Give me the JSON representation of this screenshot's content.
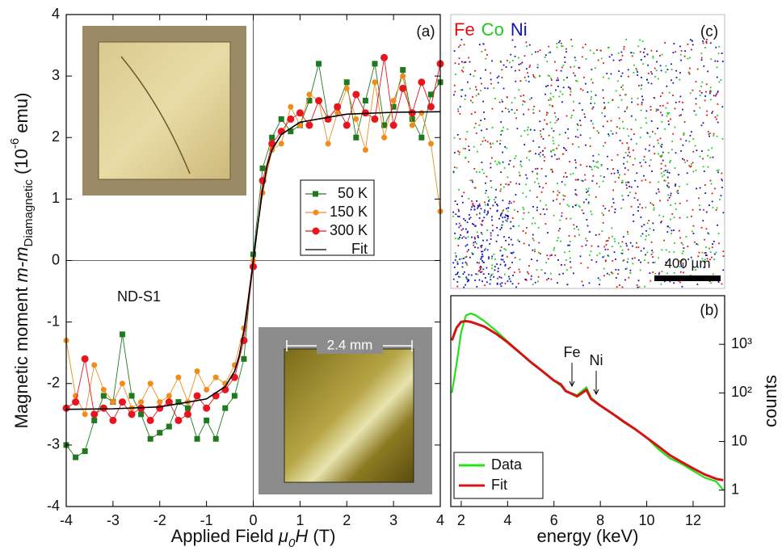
{
  "chart_data": [
    {
      "type": "line",
      "label": "(a)",
      "x_label": [
        "Applied Field ",
        "μ",
        "0",
        "H",
        " (T)"
      ],
      "y_label": [
        "Magnetic moment ",
        "m-m",
        "Diamagnetic",
        " (10",
        "-6",
        " emu)"
      ],
      "annotations": [
        "ND-S1",
        "2.4 mm"
      ],
      "xlim": [
        -4,
        4
      ],
      "ylim": [
        -4,
        4
      ],
      "xticks": [
        -4,
        -3,
        -2,
        -1,
        0,
        1,
        2,
        3,
        4
      ],
      "yticks": [
        -4,
        -3,
        -2,
        -1,
        0,
        1,
        2,
        3,
        4
      ],
      "x": [
        -4,
        -3.8,
        -3.6,
        -3.4,
        -3.2,
        -3,
        -2.8,
        -2.6,
        -2.4,
        -2.2,
        -2,
        -1.8,
        -1.6,
        -1.4,
        -1.2,
        -1,
        -0.8,
        -0.6,
        -0.4,
        -0.2,
        0,
        0.2,
        0.4,
        0.6,
        0.8,
        1,
        1.2,
        1.4,
        1.6,
        1.8,
        2,
        2.2,
        2.4,
        2.6,
        2.8,
        3,
        3.2,
        3.4,
        3.6,
        3.8,
        4
      ],
      "series": [
        {
          "name": "50 K",
          "color": "#1f7a1f",
          "marker": "square",
          "values": [
            -3.0,
            -3.2,
            -3.1,
            -2.6,
            -2.2,
            -2.3,
            -1.2,
            -2.2,
            -2.5,
            -2.9,
            -2.8,
            -2.7,
            -2.3,
            -2.4,
            -2.9,
            -2.6,
            -2.9,
            -2.4,
            -2.2,
            -1.6,
            0.1,
            1.5,
            2.0,
            2.3,
            2.1,
            2.2,
            2.6,
            3.2,
            2.3,
            2.5,
            2.9,
            2.0,
            2.6,
            3.2,
            2.2,
            2.5,
            3.1,
            2.3,
            2.0,
            2.7,
            2.9
          ]
        },
        {
          "name": "150 K",
          "color": "#f08c1a",
          "marker": "circle",
          "values": [
            -1.3,
            -2.2,
            -2.5,
            -1.7,
            -2.1,
            -2.3,
            -2.0,
            -2.4,
            -2.3,
            -2.0,
            -2.3,
            -2.2,
            -1.9,
            -2.3,
            -1.8,
            -2.1,
            -1.9,
            -2.0,
            -1.7,
            -1.1,
            0.0,
            1.1,
            1.8,
            1.9,
            2.5,
            2.2,
            2.7,
            2.6,
            1.9,
            2.4,
            2.8,
            2.3,
            1.8,
            2.9,
            2.0,
            2.6,
            3.0,
            2.2,
            2.4,
            1.9,
            0.8
          ]
        },
        {
          "name": "300 K",
          "color": "#e8141e",
          "marker": "bigcircle",
          "values": [
            -2.4,
            -2.3,
            -1.6,
            -2.5,
            -2.4,
            -2.6,
            -2.3,
            -2.5,
            -2.4,
            -2.6,
            -2.4,
            -2.3,
            -2.6,
            -2.5,
            -2.2,
            -2.4,
            -2.2,
            -2.1,
            -1.9,
            -1.3,
            -0.1,
            1.3,
            1.9,
            2.1,
            2.3,
            2.4,
            2.2,
            2.6,
            2.3,
            2.5,
            2.2,
            2.7,
            2.4,
            2.3,
            3.3,
            2.2,
            2.8,
            2.4,
            2.9,
            2.5,
            3.2
          ]
        },
        {
          "name": "Fit",
          "color": "#000000",
          "marker": "none",
          "x": [
            -4,
            -3,
            -2,
            -1,
            -0.6,
            -0.4,
            -0.3,
            -0.2,
            -0.1,
            0,
            0.1,
            0.2,
            0.3,
            0.4,
            0.6,
            1,
            2,
            3,
            4
          ],
          "values": [
            -2.42,
            -2.41,
            -2.38,
            -2.25,
            -2.05,
            -1.8,
            -1.55,
            -1.15,
            -0.6,
            0,
            0.6,
            1.15,
            1.55,
            1.8,
            2.05,
            2.25,
            2.38,
            2.41,
            2.42
          ]
        }
      ]
    },
    {
      "type": "line",
      "label": "(b)",
      "log_y": true,
      "x_label": "energy (keV)",
      "y_label": "counts",
      "annotations": [
        "Fe",
        "Ni"
      ],
      "xlim": [
        1.55,
        13.36
      ],
      "ylim": [
        0.46,
        10000
      ],
      "xticks": [
        2,
        4,
        6,
        8,
        10,
        12
      ],
      "yticks": [
        1,
        10,
        {
          "value": 100,
          "label": "10²"
        },
        {
          "value": 1000,
          "label": "10³"
        }
      ],
      "x": [
        1.6,
        1.8,
        2.0,
        2.2,
        2.4,
        2.6,
        3,
        3.5,
        4,
        4.5,
        5,
        5.5,
        6,
        6.3,
        6.5,
        7,
        7.4,
        7.6,
        8,
        8.5,
        9,
        9.5,
        10,
        10.5,
        11,
        11.5,
        12,
        12.5,
        13,
        13.3
      ],
      "series": [
        {
          "name": "Data",
          "color": "#22e01a",
          "values": [
            100,
            400,
            1800,
            3900,
            4300,
            4000,
            3000,
            1900,
            1150,
            700,
            430,
            280,
            180,
            140,
            110,
            90,
            130,
            80,
            55,
            38,
            25,
            18,
            12,
            7,
            4.5,
            3.5,
            2.5,
            1.8,
            1.5,
            1.0
          ]
        },
        {
          "name": "Fit",
          "color": "#d41414",
          "values": [
            1200,
            2200,
            2900,
            3000,
            2900,
            2700,
            2300,
            1650,
            1100,
            690,
            430,
            280,
            180,
            150,
            110,
            85,
            115,
            75,
            55,
            38,
            26,
            18,
            12,
            8,
            5.2,
            3.8,
            2.8,
            2.1,
            1.7,
            1.6
          ]
        }
      ]
    },
    {
      "type": "map",
      "label": "(c)",
      "scale_bar": "400 µm",
      "elements": [
        {
          "name": "Fe",
          "color": "#e01010"
        },
        {
          "name": "Co",
          "color": "#20c820"
        },
        {
          "name": "Ni",
          "color": "#1010c0"
        }
      ]
    }
  ]
}
